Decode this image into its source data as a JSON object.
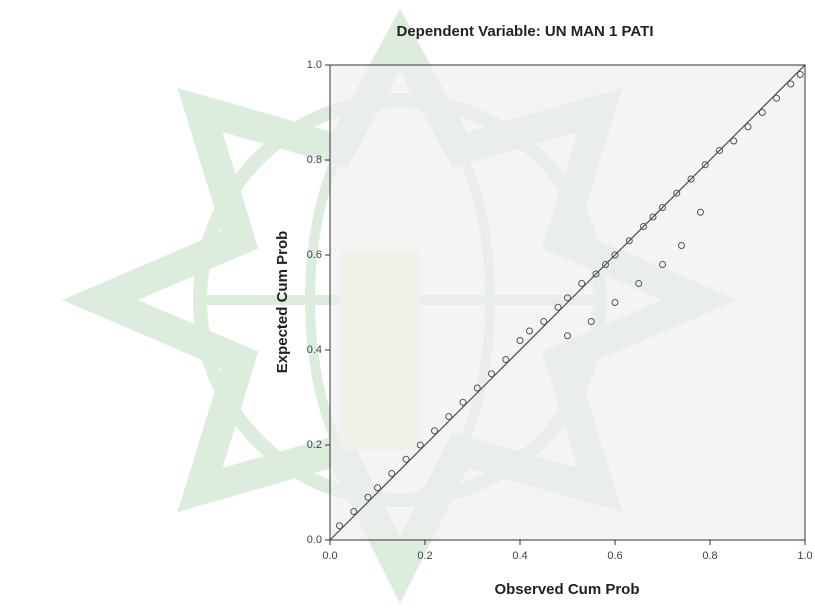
{
  "chart_data": {
    "type": "scatter",
    "title": "Dependent Variable: UN MAN 1 PATI",
    "x_label": "Observed Cum Prob",
    "y_label": "Expected Cum Prob",
    "x": [
      0.02,
      0.05,
      0.08,
      0.1,
      0.13,
      0.16,
      0.19,
      0.22,
      0.25,
      0.28,
      0.31,
      0.34,
      0.37,
      0.4,
      0.42,
      0.45,
      0.48,
      0.5,
      0.53,
      0.56,
      0.58,
      0.6,
      0.63,
      0.66,
      0.68,
      0.7,
      0.73,
      0.76,
      0.79,
      0.82,
      0.85,
      0.88,
      0.91,
      0.94,
      0.97,
      0.99,
      0.5,
      0.55,
      0.6,
      0.65,
      0.7,
      0.74,
      0.78
    ],
    "values": [
      0.03,
      0.06,
      0.09,
      0.11,
      0.14,
      0.17,
      0.2,
      0.23,
      0.26,
      0.29,
      0.32,
      0.35,
      0.38,
      0.42,
      0.44,
      0.46,
      0.49,
      0.51,
      0.54,
      0.56,
      0.58,
      0.6,
      0.63,
      0.66,
      0.68,
      0.7,
      0.73,
      0.76,
      0.79,
      0.82,
      0.84,
      0.87,
      0.9,
      0.93,
      0.96,
      0.98,
      0.43,
      0.46,
      0.5,
      0.54,
      0.58,
      0.62,
      0.69
    ],
    "color": "#555555",
    "xlim": [
      0,
      1
    ],
    "ylim": [
      0,
      1
    ],
    "xticks": [
      {
        "value": 0,
        "label": "0.0"
      },
      {
        "value": 0.2,
        "label": "0.2"
      },
      {
        "value": 0.4,
        "label": "0.4"
      },
      {
        "value": 0.6,
        "label": "0.6"
      },
      {
        "value": 0.8,
        "label": "0.8"
      },
      {
        "value": 1,
        "label": "1.0"
      }
    ],
    "yticks": [
      {
        "value": 0,
        "label": "0.0"
      },
      {
        "value": 0.2,
        "label": "0.2"
      },
      {
        "value": 0.4,
        "label": "0.4"
      },
      {
        "value": 0.6,
        "label": "0.6"
      },
      {
        "value": 0.8,
        "label": "0.8"
      },
      {
        "value": 1,
        "label": "1.0"
      }
    ]
  }
}
